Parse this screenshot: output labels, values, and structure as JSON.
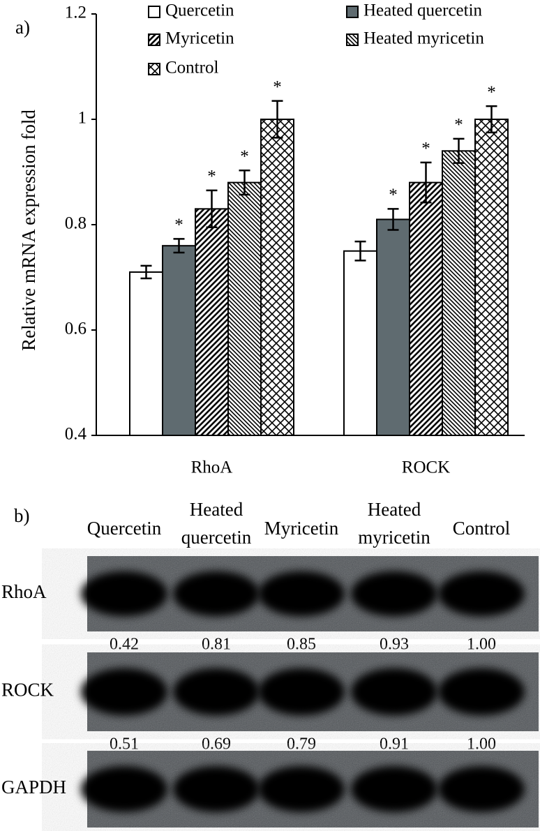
{
  "chart_data": {
    "type": "bar",
    "panel": "a)",
    "ylabel": "Relative mRNA expression fold",
    "categories": [
      "RhoA",
      "ROCK"
    ],
    "series": [
      {
        "name": "Quercetin",
        "color": "#ffffff",
        "hatch": "none",
        "values": [
          0.71,
          0.75
        ],
        "errors": [
          0.012,
          0.018
        ]
      },
      {
        "name": "Heated quercetin",
        "color": "#5f6b70",
        "hatch": "none",
        "values": [
          0.76,
          0.81
        ],
        "errors": [
          0.013,
          0.02
        ],
        "labels": [
          "*",
          "*"
        ]
      },
      {
        "name": "Myricetin",
        "color": "#ffffff",
        "hatch": "diagonal",
        "values": [
          0.83,
          0.88
        ],
        "errors": [
          0.035,
          0.038
        ],
        "labels": [
          "*",
          "*"
        ]
      },
      {
        "name": "Heated myricetin",
        "color": "#ffffff",
        "hatch": "backdiagonal",
        "values": [
          0.88,
          0.94
        ],
        "errors": [
          0.023,
          0.023
        ],
        "labels": [
          "*",
          "*"
        ]
      },
      {
        "name": "Control",
        "color": "#ffffff",
        "hatch": "crosshatch",
        "values": [
          1,
          1
        ],
        "errors": [
          0.035,
          0.025
        ],
        "labels": [
          "*",
          "*"
        ]
      }
    ],
    "ylim": [
      0.4,
      1.2
    ],
    "yticks": [
      0.4,
      0.6,
      0.8,
      1,
      1.2
    ],
    "grid": false,
    "legend": "top"
  },
  "blot": {
    "panel": "b)",
    "columns": [
      [
        "Quercetin"
      ],
      [
        "Heated",
        "quercetin"
      ],
      [
        "Myricetin"
      ],
      [
        "Heated",
        "myricetin"
      ],
      [
        "Control"
      ]
    ],
    "rows": [
      {
        "label": "RhoA",
        "values": [
          "0.42",
          "0.81",
          "0.85",
          "0.93",
          "1.00"
        ]
      },
      {
        "label": "ROCK",
        "values": [
          "0.51",
          "0.69",
          "0.79",
          "0.91",
          "1.00"
        ]
      },
      {
        "label": "GAPDH"
      }
    ]
  }
}
